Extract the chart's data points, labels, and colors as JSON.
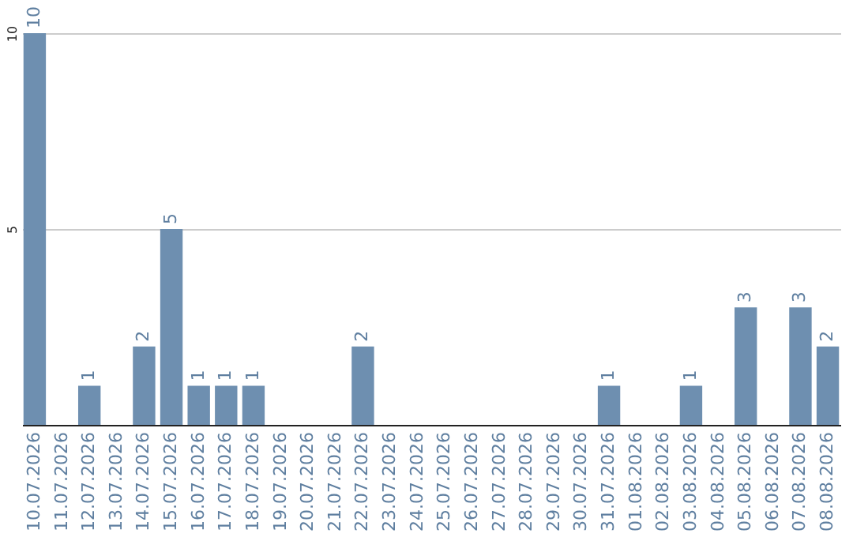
{
  "chart_data": {
    "type": "bar",
    "categories": [
      "10.07.2026",
      "11.07.2026",
      "12.07.2026",
      "13.07.2026",
      "14.07.2026",
      "15.07.2026",
      "16.07.2026",
      "17.07.2026",
      "18.07.2026",
      "19.07.2026",
      "20.07.2026",
      "21.07.2026",
      "22.07.2026",
      "23.07.2026",
      "24.07.2026",
      "25.07.2026",
      "26.07.2026",
      "27.07.2026",
      "28.07.2026",
      "29.07.2026",
      "30.07.2026",
      "31.07.2026",
      "01.08.2026",
      "02.08.2026",
      "03.08.2026",
      "04.08.2026",
      "05.08.2026",
      "06.08.2026",
      "07.08.2026",
      "08.08.2026"
    ],
    "values": [
      10,
      0,
      1,
      0,
      2,
      5,
      1,
      1,
      1,
      0,
      0,
      0,
      2,
      0,
      0,
      0,
      0,
      0,
      0,
      0,
      0,
      1,
      0,
      0,
      1,
      0,
      3,
      0,
      3,
      2
    ],
    "value_labels": [
      "10",
      null,
      "1",
      null,
      "2",
      "5",
      "1",
      "1",
      "1",
      null,
      null,
      null,
      "2",
      null,
      null,
      null,
      null,
      null,
      null,
      null,
      null,
      "1",
      null,
      null,
      "1",
      null,
      "3",
      null,
      "3",
      "2"
    ],
    "color": "#6e8fb0",
    "ylim": [
      0,
      10
    ],
    "yticks": [
      5,
      10
    ],
    "grid": "y"
  }
}
